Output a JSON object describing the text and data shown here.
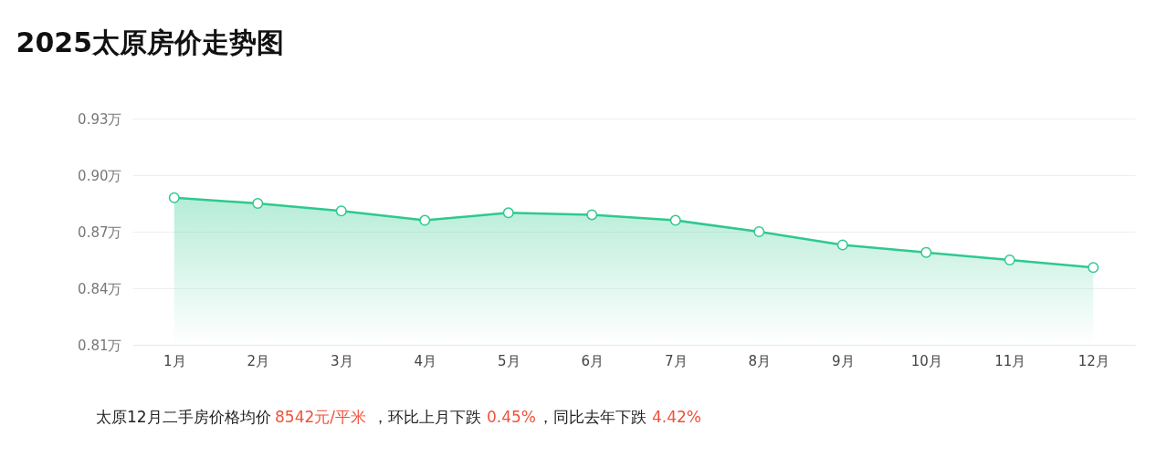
{
  "chart_data": {
    "type": "area",
    "title": "2025太原房价走势图",
    "categories": [
      "1月",
      "2月",
      "3月",
      "4月",
      "5月",
      "6月",
      "7月",
      "8月",
      "9月",
      "10月",
      "11月",
      "12月"
    ],
    "series": [
      {
        "color": "#2ec98f",
        "values": [
          0.888,
          0.885,
          0.881,
          0.876,
          0.88,
          0.879,
          0.876,
          0.87,
          0.863,
          0.859,
          0.855,
          0.851
        ]
      }
    ],
    "ylim": [
      0.81,
      0.93
    ],
    "yticks": [
      {
        "value": 0.81,
        "label": "0.81万"
      },
      {
        "value": 0.84,
        "label": "0.84万"
      },
      {
        "value": 0.87,
        "label": "0.87万"
      },
      {
        "value": 0.9,
        "label": "0.90万"
      },
      {
        "value": 0.93,
        "label": "0.93万"
      }
    ],
    "grid": "y",
    "marker": "circle",
    "annotations": [
      "太原12月二手房价格均价",
      "8542元/平米",
      "，环比上月下跌",
      "0.45%",
      "，同比去年下跌",
      "4.42%"
    ]
  }
}
